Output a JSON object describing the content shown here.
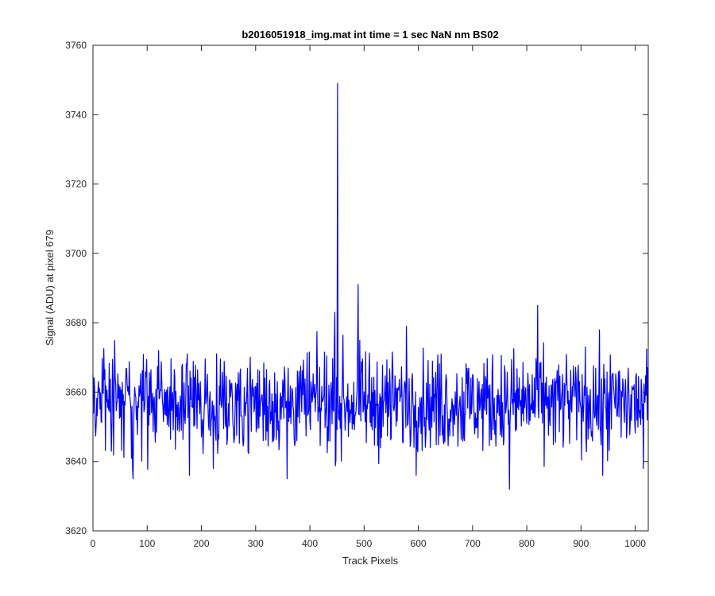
{
  "chart_data": {
    "type": "line",
    "title": "b2016051918_img.mat int time = 1 sec  NaN nm BS02",
    "xlabel": "Track Pixels",
    "ylabel": "Signal (ADU) at pixel 679",
    "xlim": [
      0,
      1024
    ],
    "ylim": [
      3620,
      3760
    ],
    "xticks": [
      0,
      100,
      200,
      300,
      400,
      500,
      600,
      700,
      800,
      900,
      1000
    ],
    "yticks": [
      3620,
      3640,
      3660,
      3680,
      3700,
      3720,
      3740,
      3760
    ],
    "grid": false,
    "legend": "none",
    "line_color": "#0000ff",
    "series": [
      {
        "noise_baseline": 3657,
        "noise_range": [
          3632,
          3685
        ],
        "x_range": [
          0,
          1023
        ],
        "peaks": [
          {
            "x": 451,
            "y": 3749
          },
          {
            "x": 489,
            "y": 3691
          },
          {
            "x": 446,
            "y": 3683
          },
          {
            "x": 820,
            "y": 3685
          },
          {
            "x": 768,
            "y": 3632
          },
          {
            "x": 74,
            "y": 3635
          },
          {
            "x": 358,
            "y": 3635
          },
          {
            "x": 178,
            "y": 3636
          },
          {
            "x": 940,
            "y": 3636
          },
          {
            "x": 578,
            "y": 3679
          },
          {
            "x": 1015,
            "y": 3638
          }
        ]
      }
    ]
  }
}
